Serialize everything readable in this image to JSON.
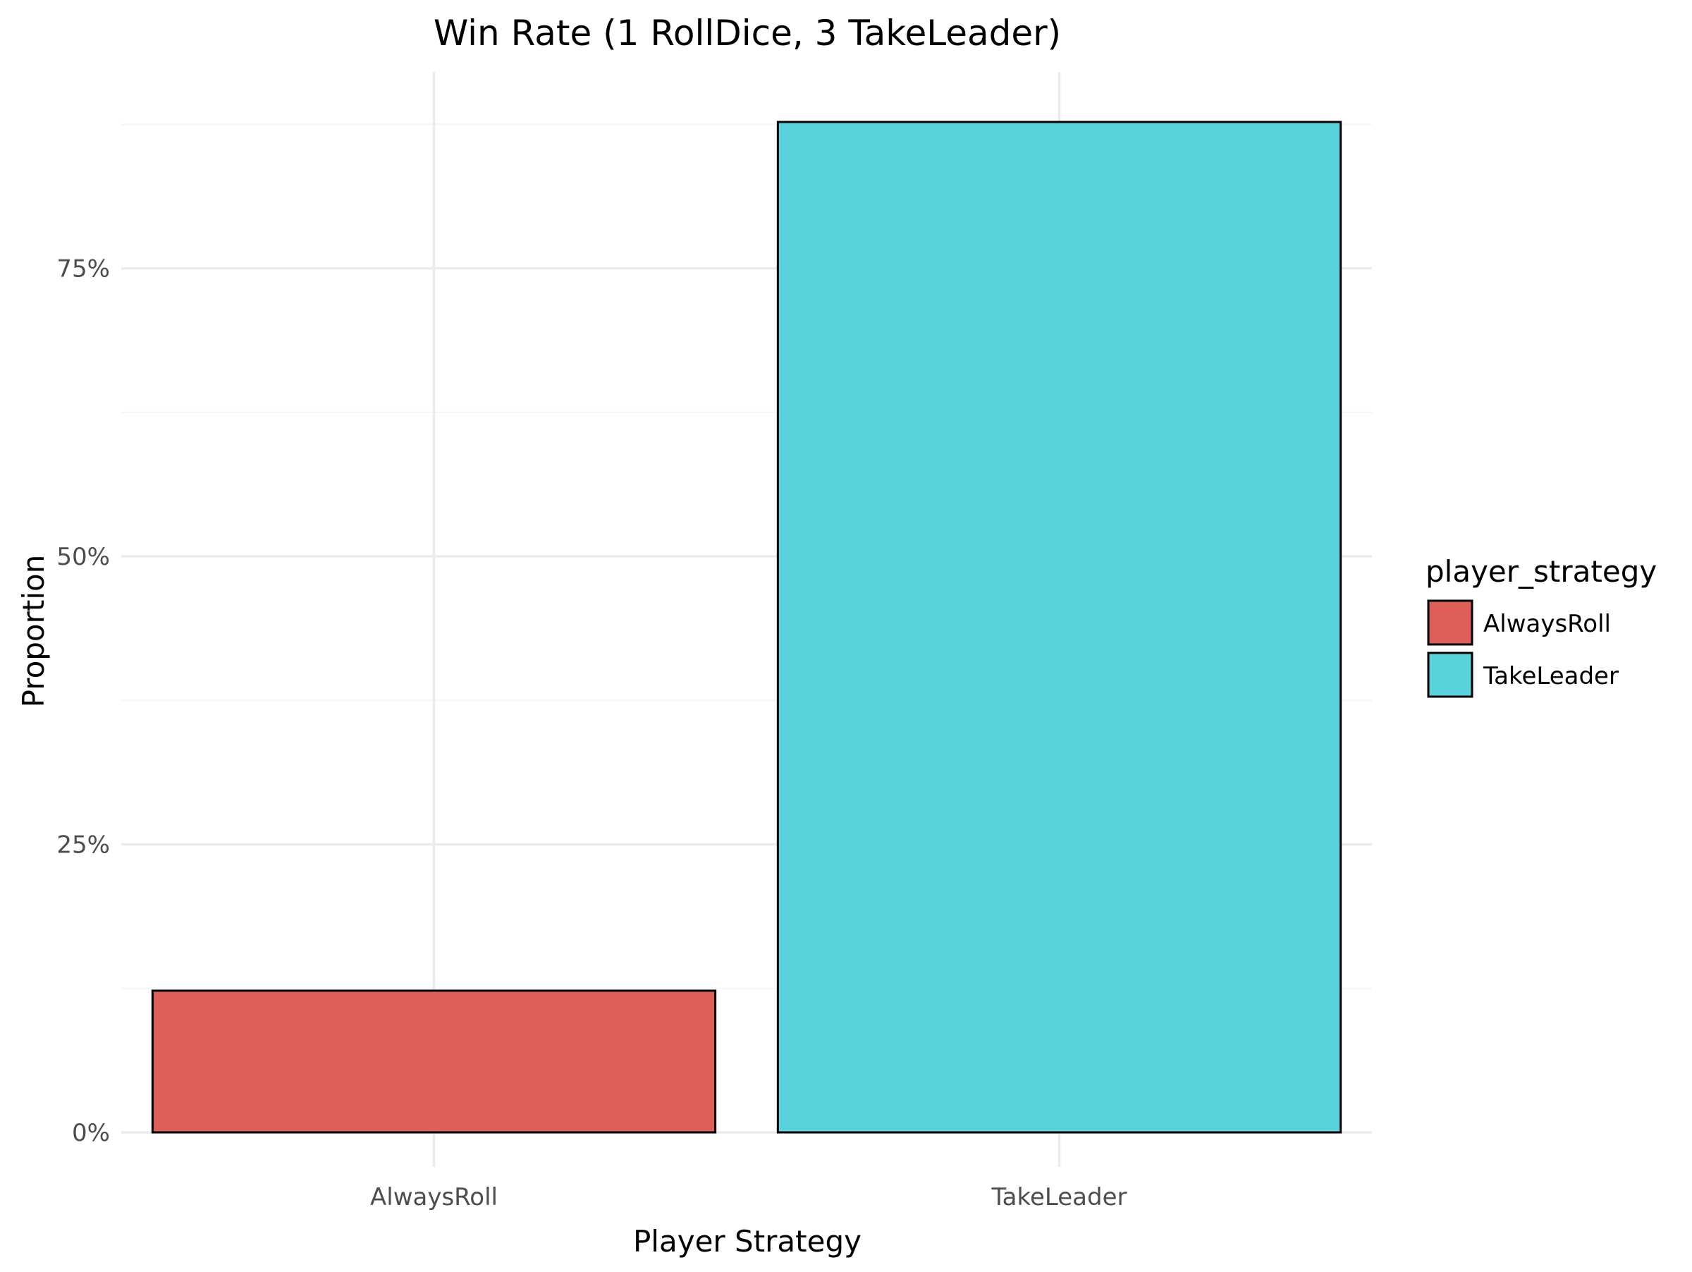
{
  "chart_data": {
    "type": "bar",
    "title": "Win Rate (1 RollDice, 3 TakeLeader)",
    "xlabel": "Player Strategy",
    "ylabel": "Proportion",
    "categories": [
      "AlwaysRoll",
      "TakeLeader"
    ],
    "values": [
      0.123,
      0.877
    ],
    "colors": [
      "#DD5F58",
      "#59D3DB"
    ],
    "ylim": [
      0,
      0.88
    ],
    "yticks": [
      0,
      0.25,
      0.5,
      0.75
    ],
    "ytick_labels": [
      "0%",
      "25%",
      "50%",
      "75%"
    ],
    "grid": true,
    "legend": {
      "title": "player_strategy",
      "position": "right",
      "entries": [
        {
          "label": "AlwaysRoll",
          "color": "#DD5F58"
        },
        {
          "label": "TakeLeader",
          "color": "#59D3DB"
        }
      ]
    }
  }
}
